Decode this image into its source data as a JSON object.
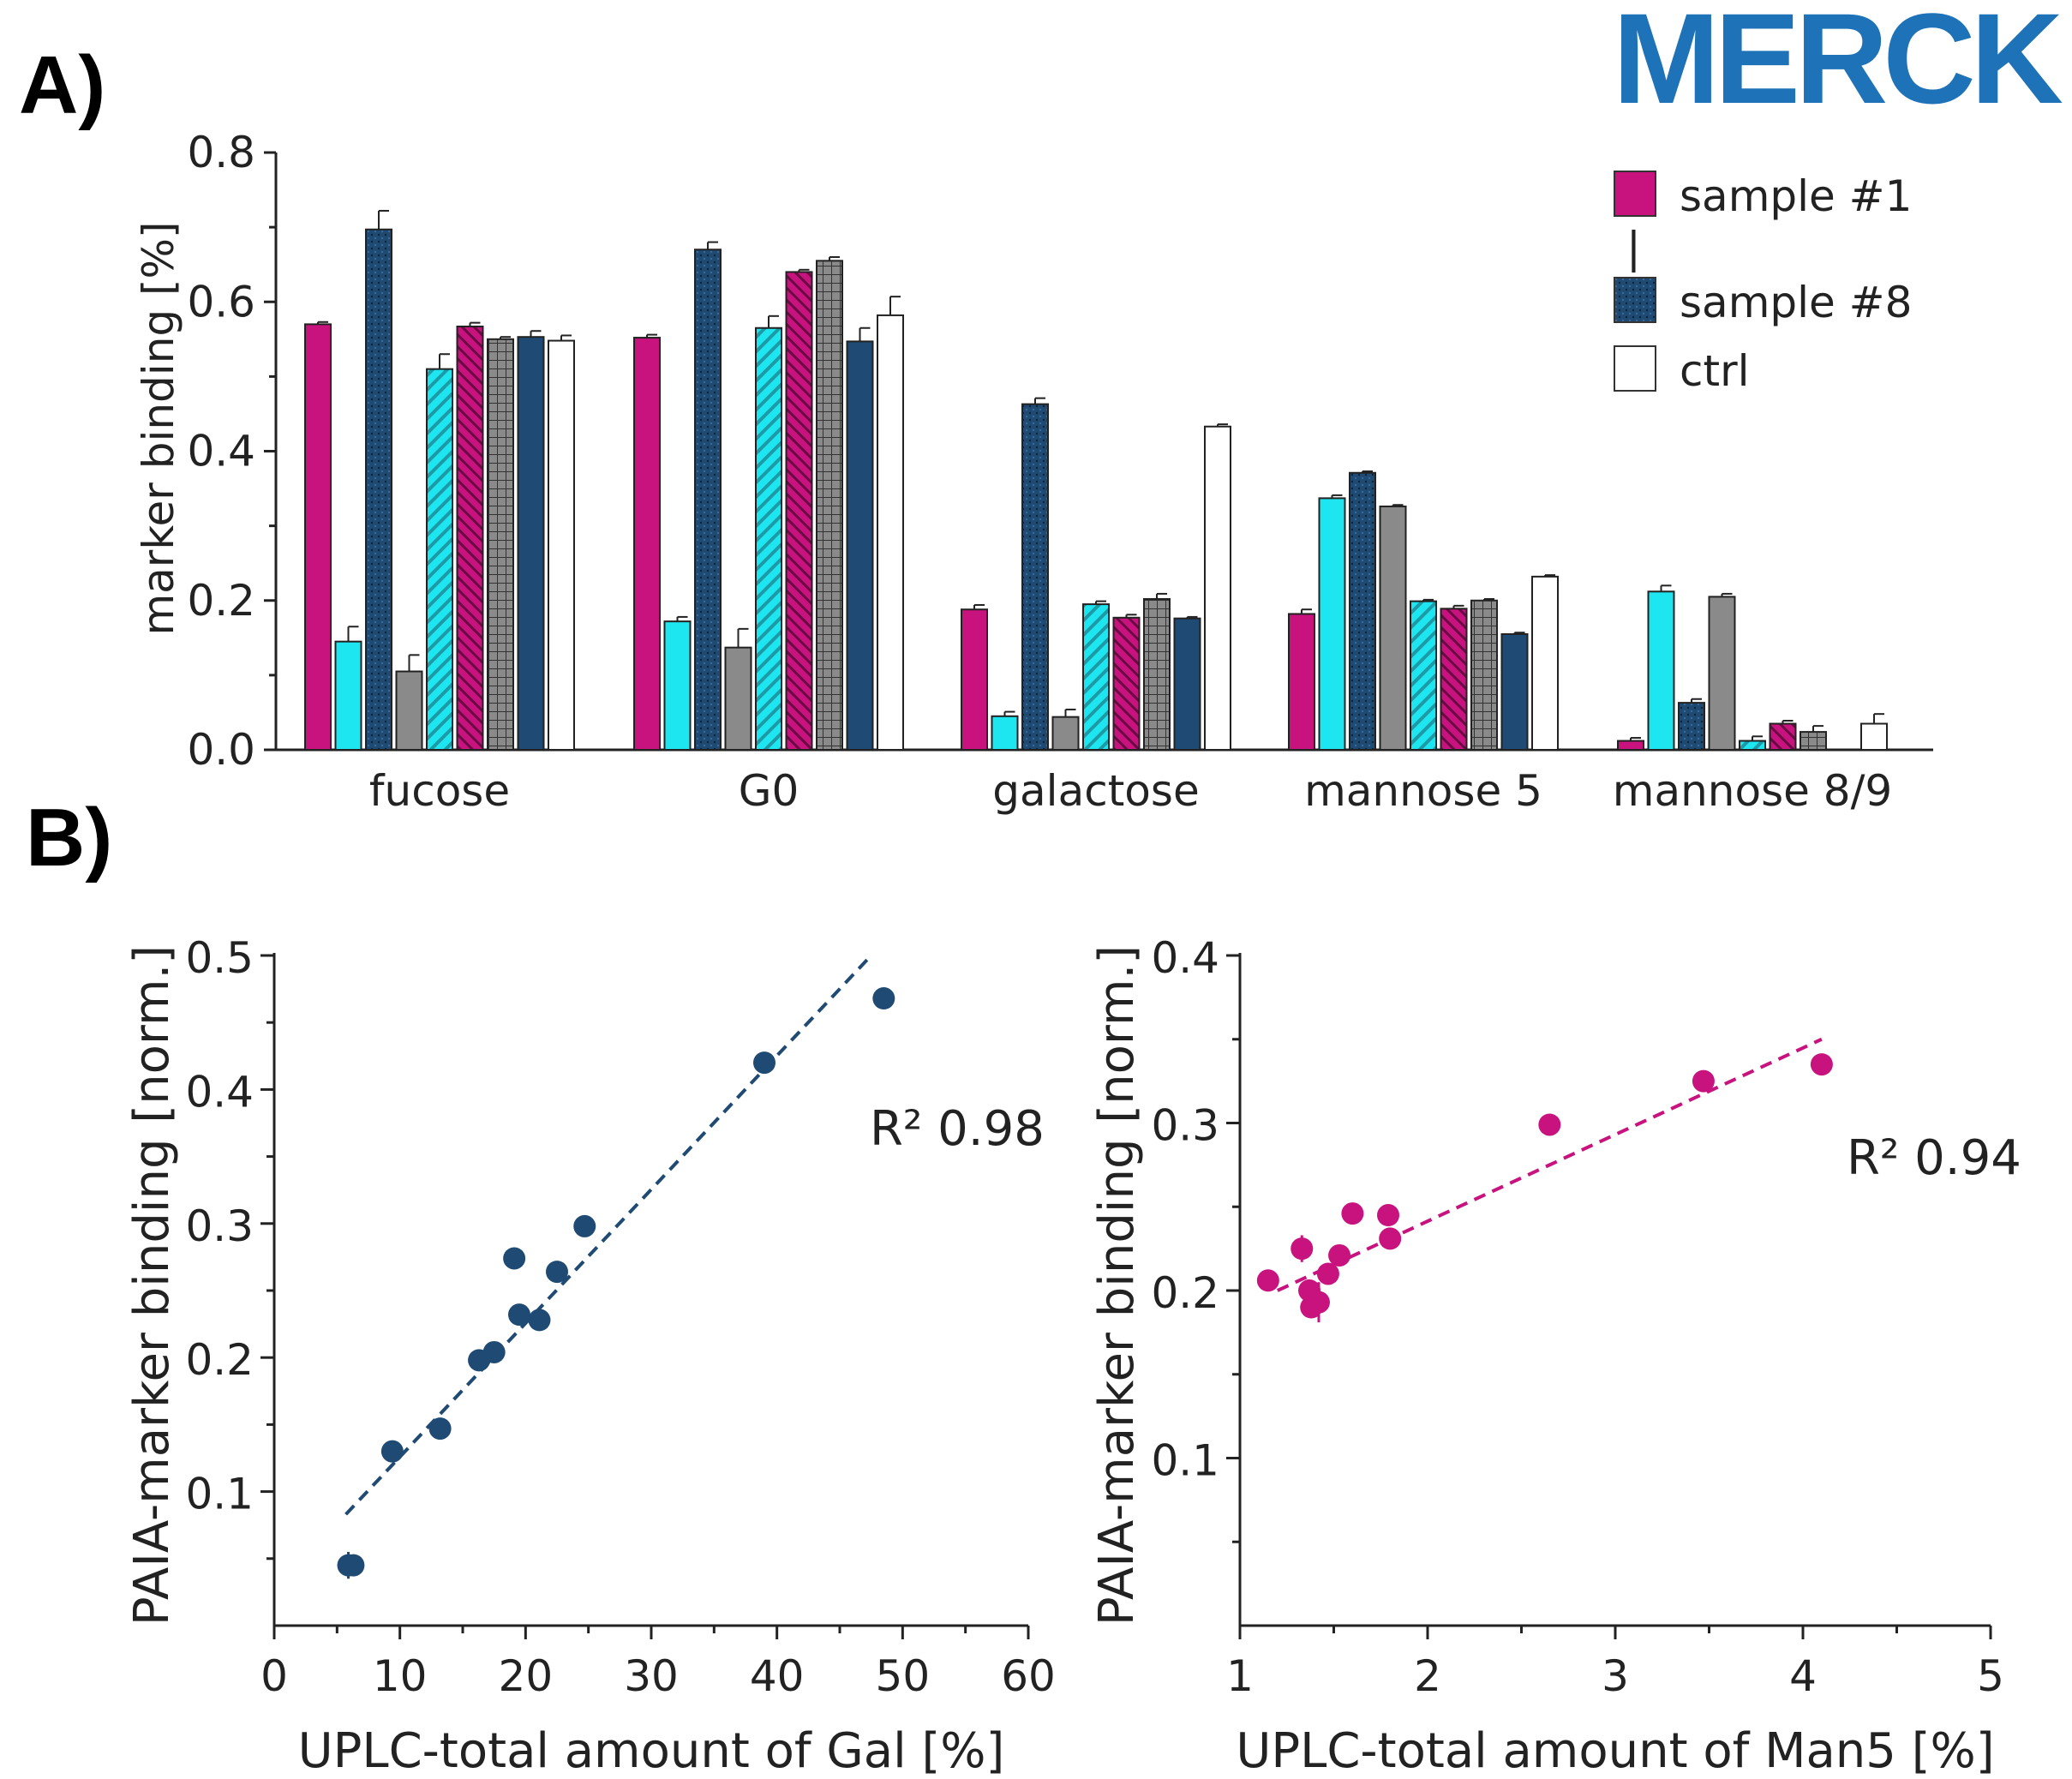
{
  "panel_labels": [
    "A)",
    "B)"
  ],
  "logo_text": "MERCK",
  "colors": {
    "magenta": "#c8127d",
    "cyan": "#1ee6f0",
    "navy": "#1e4a73",
    "gray": "#8a8a8a",
    "white": "#ffffff",
    "logo": "#1e73b8"
  },
  "chart_data": [
    {
      "type": "bar",
      "ylabel": "marker binding [%]",
      "ylim": [
        0,
        0.8
      ],
      "yticks": [
        "0.0",
        "0.2",
        "0.4",
        "0.6",
        "0.8"
      ],
      "categories": [
        "fucose",
        "G0",
        "galactose",
        "mannose 5",
        "mannose 8/9"
      ],
      "legend": {
        "placement": "top-right",
        "entries": [
          "sample #1",
          "sample #8",
          "ctrl"
        ],
        "range_marker": "|"
      },
      "bar_styles": [
        {
          "color": "magenta",
          "pattern": "solid"
        },
        {
          "color": "cyan",
          "pattern": "solid"
        },
        {
          "color": "navy",
          "pattern": "dots"
        },
        {
          "color": "gray",
          "pattern": "solid"
        },
        {
          "color": "cyan",
          "pattern": "diagonal"
        },
        {
          "color": "magenta",
          "pattern": "diagonal"
        },
        {
          "color": "gray",
          "pattern": "grid"
        },
        {
          "color": "navy",
          "pattern": "solid"
        },
        {
          "color": "white",
          "pattern": "solid"
        }
      ],
      "values": [
        [
          0.57,
          0.145,
          0.697,
          0.105,
          0.51,
          0.567,
          0.55,
          0.553,
          0.548
        ],
        [
          0.552,
          0.172,
          0.67,
          0.137,
          0.565,
          0.64,
          0.655,
          0.547,
          0.582
        ],
        [
          0.188,
          0.045,
          0.463,
          0.044,
          0.195,
          0.177,
          0.202,
          0.176,
          0.433
        ],
        [
          0.182,
          0.337,
          0.371,
          0.326,
          0.199,
          0.189,
          0.2,
          0.155,
          0.232
        ],
        [
          0.012,
          0.212,
          0.063,
          0.205,
          0.012,
          0.035,
          0.024,
          0.0,
          0.035
        ]
      ],
      "errors": [
        [
          0.003,
          0.02,
          0.025,
          0.022,
          0.02,
          0.005,
          0.003,
          0.008,
          0.007
        ],
        [
          0.004,
          0.006,
          0.01,
          0.025,
          0.016,
          0.003,
          0.005,
          0.018,
          0.025
        ],
        [
          0.006,
          0.006,
          0.008,
          0.01,
          0.004,
          0.004,
          0.007,
          0.002,
          0.003
        ],
        [
          0.006,
          0.004,
          0.002,
          0.002,
          0.002,
          0.004,
          0.002,
          0.002,
          0.002
        ],
        [
          0.004,
          0.008,
          0.005,
          0.004,
          0.006,
          0.004,
          0.008,
          0.0,
          0.013
        ]
      ]
    },
    {
      "type": "scatter",
      "xlabel": "UPLC-total amount of Gal [%]",
      "ylabel": "PAIA-marker binding [norm.]",
      "xlim": [
        0,
        60
      ],
      "ylim": [
        0,
        0.5
      ],
      "xticks": [
        "0",
        "10",
        "20",
        "30",
        "40",
        "50",
        "60"
      ],
      "yticks": [
        "0.1",
        "0.2",
        "0.3",
        "0.4",
        "0.5"
      ],
      "color": "navy",
      "annotation": "R² 0.98",
      "points": [
        {
          "x": 5.9,
          "y": 0.045,
          "err": 0.01
        },
        {
          "x": 6.3,
          "y": 0.045,
          "err": 0.008
        },
        {
          "x": 9.4,
          "y": 0.13,
          "err": 0.008
        },
        {
          "x": 13.2,
          "y": 0.147,
          "err": 0.0
        },
        {
          "x": 16.3,
          "y": 0.198,
          "err": 0.0
        },
        {
          "x": 17.5,
          "y": 0.204,
          "err": 0.0
        },
        {
          "x": 19.1,
          "y": 0.274,
          "err": 0.0
        },
        {
          "x": 19.5,
          "y": 0.232,
          "err": 0.0
        },
        {
          "x": 21.1,
          "y": 0.228,
          "err": 0.0
        },
        {
          "x": 22.5,
          "y": 0.264,
          "err": 0.0
        },
        {
          "x": 24.7,
          "y": 0.298,
          "err": 0.0
        },
        {
          "x": 39.0,
          "y": 0.42,
          "err": 0.0
        },
        {
          "x": 48.5,
          "y": 0.468,
          "err": 0.0
        }
      ],
      "fit_line": {
        "x": [
          5.7,
          47.5
        ],
        "y": [
          0.083,
          0.5
        ]
      }
    },
    {
      "type": "scatter",
      "xlabel": "UPLC-total amount of Man5 [%]",
      "ylabel": "PAIA-marker binding [norm.]",
      "xlim": [
        1,
        5
      ],
      "ylim": [
        0,
        0.4
      ],
      "xticks": [
        "1",
        "2",
        "3",
        "4",
        "5"
      ],
      "yticks": [
        "0.1",
        "0.2",
        "0.3",
        "0.4"
      ],
      "color": "magenta",
      "annotation": "R² 0.94",
      "points": [
        {
          "x": 1.15,
          "y": 0.206,
          "err": 0.0
        },
        {
          "x": 1.33,
          "y": 0.225,
          "err": 0.008
        },
        {
          "x": 1.37,
          "y": 0.2,
          "err": 0.006
        },
        {
          "x": 1.38,
          "y": 0.19,
          "err": 0.006
        },
        {
          "x": 1.42,
          "y": 0.193,
          "err": 0.012
        },
        {
          "x": 1.47,
          "y": 0.21,
          "err": 0.0
        },
        {
          "x": 1.53,
          "y": 0.221,
          "err": 0.0
        },
        {
          "x": 1.6,
          "y": 0.246,
          "err": 0.0
        },
        {
          "x": 1.8,
          "y": 0.231,
          "err": 0.0
        },
        {
          "x": 1.79,
          "y": 0.245,
          "err": 0.0
        },
        {
          "x": 2.65,
          "y": 0.299,
          "err": 0.0
        },
        {
          "x": 3.47,
          "y": 0.325,
          "err": 0.0
        },
        {
          "x": 4.1,
          "y": 0.335,
          "err": 0.0
        }
      ],
      "fit_line": {
        "x": [
          1.2,
          4.1
        ],
        "y": [
          0.2,
          0.35
        ]
      }
    }
  ]
}
